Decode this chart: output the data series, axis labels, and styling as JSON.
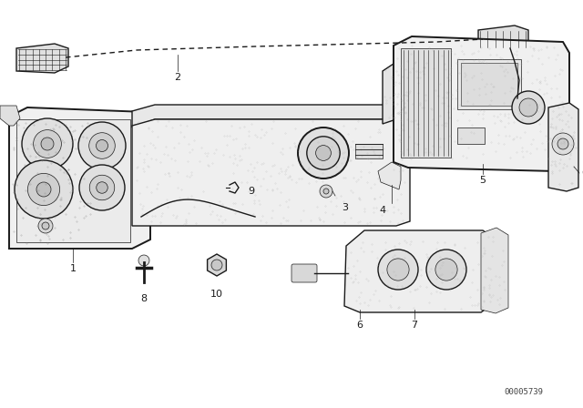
{
  "bg_color": "#ffffff",
  "line_color": "#1a1a1a",
  "diagram_code_text": "00005739",
  "lw_main": 1.0,
  "lw_thin": 0.5,
  "lw_thick": 1.4
}
